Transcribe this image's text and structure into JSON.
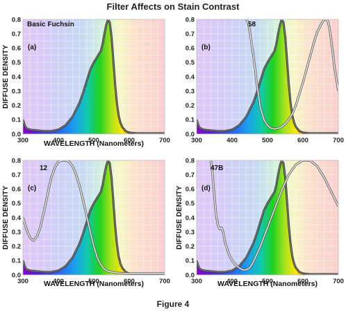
{
  "title": "Filter Affects on Stain Contrast",
  "caption": "Figure 4",
  "chart_data": [
    {
      "type": "line",
      "panel": "(a)",
      "annotation": "Basic Fuchsin",
      "xlabel": "WAVELENGTH (Nanometers)",
      "ylabel": "DIFFUSE DENSITY",
      "xlim": [
        300,
        700
      ],
      "ylim": [
        0,
        0.8
      ],
      "xticks": [
        "300",
        "400",
        "500",
        "600",
        "700"
      ],
      "yticks": [
        "0.0",
        "0.1",
        "0.2",
        "0.3",
        "0.4",
        "0.5",
        "0.6",
        "0.7",
        "0.8"
      ],
      "grid": true,
      "series": [
        {
          "x": [
            300,
            305,
            310,
            320,
            340,
            360,
            380,
            400,
            420,
            440,
            460,
            470,
            480,
            490,
            500,
            510,
            520,
            525,
            530,
            535,
            540,
            545,
            550,
            555,
            560,
            565,
            570,
            575,
            580,
            590,
            600,
            620,
            640,
            660,
            680,
            700
          ],
          "y": [
            0.1,
            0.06,
            0.04,
            0.03,
            0.025,
            0.02,
            0.02,
            0.03,
            0.06,
            0.12,
            0.22,
            0.29,
            0.37,
            0.45,
            0.5,
            0.54,
            0.58,
            0.63,
            0.7,
            0.76,
            0.8,
            0.78,
            0.68,
            0.52,
            0.35,
            0.22,
            0.13,
            0.08,
            0.05,
            0.02,
            0.01,
            0.005,
            0.005,
            0.005,
            0.005,
            0.005
          ]
        }
      ]
    },
    {
      "type": "line",
      "panel": "(b)",
      "annotation": "58",
      "xlabel": "",
      "ylabel": "",
      "xlim": [
        300,
        700
      ],
      "ylim": [
        0,
        0.8
      ],
      "xticks": [
        "300",
        "400",
        "500",
        "600",
        "700"
      ],
      "yticks": [
        "0.0",
        "0.1",
        "0.2",
        "0.3",
        "0.4",
        "0.5",
        "0.6",
        "0.7",
        "0.8"
      ],
      "grid": true,
      "series": [
        {
          "x": [
            300,
            305,
            310,
            320,
            340,
            360,
            380,
            400,
            420,
            440,
            460,
            470,
            480,
            490,
            500,
            510,
            520,
            525,
            530,
            535,
            540,
            545,
            550,
            555,
            560,
            565,
            570,
            575,
            580,
            590,
            600,
            620,
            640,
            660,
            680,
            700
          ],
          "y": [
            0.1,
            0.06,
            0.04,
            0.03,
            0.025,
            0.02,
            0.02,
            0.03,
            0.06,
            0.12,
            0.22,
            0.29,
            0.37,
            0.45,
            0.5,
            0.54,
            0.58,
            0.63,
            0.7,
            0.76,
            0.8,
            0.78,
            0.68,
            0.52,
            0.35,
            0.22,
            0.13,
            0.08,
            0.05,
            0.02,
            0.01,
            0.005,
            0.005,
            0.005,
            0.005,
            0.005
          ]
        },
        {
          "x": [
            440,
            445,
            450,
            460,
            470,
            480,
            490,
            500,
            510,
            520,
            530,
            540,
            550,
            560,
            570,
            580,
            590,
            600,
            610,
            620,
            630,
            640,
            650,
            660,
            665,
            670,
            675,
            680,
            690,
            700
          ],
          "y": [
            0.8,
            0.78,
            0.72,
            0.55,
            0.35,
            0.18,
            0.1,
            0.06,
            0.04,
            0.035,
            0.04,
            0.05,
            0.07,
            0.1,
            0.14,
            0.2,
            0.28,
            0.36,
            0.45,
            0.54,
            0.63,
            0.71,
            0.76,
            0.8,
            0.8,
            0.79,
            0.74,
            0.65,
            0.45,
            0.3
          ]
        }
      ]
    },
    {
      "type": "line",
      "panel": "(c)",
      "annotation": "12",
      "xlabel": "WAVELENGTH (Nanometers)",
      "ylabel": "DIFFUSE DENSITY",
      "xlim": [
        300,
        700
      ],
      "ylim": [
        0,
        0.8
      ],
      "xticks": [
        "300",
        "400",
        "500",
        "600",
        "700"
      ],
      "yticks": [
        "0.0",
        "0.1",
        "0.2",
        "0.3",
        "0.4",
        "0.5",
        "0.6",
        "0.7",
        "0.8"
      ],
      "grid": true,
      "series": [
        {
          "x": [
            300,
            305,
            310,
            320,
            340,
            360,
            380,
            400,
            420,
            440,
            460,
            470,
            480,
            490,
            500,
            510,
            520,
            525,
            530,
            535,
            540,
            545,
            550,
            555,
            560,
            565,
            570,
            575,
            580,
            590,
            600,
            620,
            640,
            660,
            680,
            700
          ],
          "y": [
            0.1,
            0.06,
            0.04,
            0.03,
            0.025,
            0.02,
            0.02,
            0.03,
            0.06,
            0.12,
            0.22,
            0.29,
            0.37,
            0.45,
            0.5,
            0.54,
            0.58,
            0.63,
            0.7,
            0.76,
            0.8,
            0.78,
            0.68,
            0.52,
            0.35,
            0.22,
            0.13,
            0.08,
            0.05,
            0.02,
            0.01,
            0.005,
            0.005,
            0.005,
            0.005,
            0.005
          ]
        },
        {
          "x": [
            300,
            310,
            320,
            330,
            340,
            350,
            360,
            370,
            380,
            390,
            400,
            410,
            420,
            430,
            440,
            450,
            460,
            470,
            480,
            490,
            500,
            510,
            520,
            530,
            540,
            560,
            580,
            600,
            650,
            700
          ],
          "y": [
            0.4,
            0.32,
            0.26,
            0.24,
            0.27,
            0.34,
            0.45,
            0.57,
            0.68,
            0.75,
            0.79,
            0.8,
            0.8,
            0.79,
            0.76,
            0.7,
            0.62,
            0.52,
            0.41,
            0.3,
            0.2,
            0.12,
            0.07,
            0.04,
            0.025,
            0.015,
            0.012,
            0.01,
            0.01,
            0.01
          ]
        }
      ]
    },
    {
      "type": "line",
      "panel": "(d)",
      "annotation": "47B",
      "xlabel": "WAVELENGTH (Nanometers)",
      "ylabel": "DIFFUSE DENSITY",
      "xlim": [
        300,
        700
      ],
      "ylim": [
        0,
        0.8
      ],
      "xticks": [
        "300",
        "400",
        "500",
        "600",
        "700"
      ],
      "yticks": [
        "0.0",
        "0.1",
        "0.2",
        "0.3",
        "0.4",
        "0.5",
        "0.6",
        "0.7",
        "0.8"
      ],
      "grid": true,
      "series": [
        {
          "x": [
            300,
            305,
            310,
            320,
            340,
            360,
            380,
            400,
            420,
            440,
            460,
            470,
            480,
            490,
            500,
            510,
            520,
            525,
            530,
            535,
            540,
            545,
            550,
            555,
            560,
            565,
            570,
            575,
            580,
            590,
            600,
            620,
            640,
            660,
            680,
            700
          ],
          "y": [
            0.1,
            0.06,
            0.04,
            0.03,
            0.025,
            0.02,
            0.02,
            0.03,
            0.06,
            0.12,
            0.22,
            0.29,
            0.37,
            0.45,
            0.5,
            0.54,
            0.58,
            0.63,
            0.7,
            0.76,
            0.8,
            0.78,
            0.68,
            0.52,
            0.35,
            0.22,
            0.13,
            0.08,
            0.05,
            0.02,
            0.01,
            0.005,
            0.005,
            0.005,
            0.005,
            0.005
          ]
        },
        {
          "x": [
            340,
            345,
            350,
            355,
            360,
            365,
            370,
            375,
            380,
            390,
            400,
            410,
            420,
            430,
            440,
            450,
            460,
            480,
            500,
            520,
            540,
            560,
            580,
            600,
            620,
            640,
            660,
            680,
            700
          ],
          "y": [
            0.8,
            0.7,
            0.55,
            0.42,
            0.35,
            0.32,
            0.33,
            0.3,
            0.23,
            0.15,
            0.1,
            0.07,
            0.05,
            0.035,
            0.035,
            0.05,
            0.09,
            0.2,
            0.33,
            0.46,
            0.59,
            0.7,
            0.77,
            0.8,
            0.8,
            0.76,
            0.68,
            0.58,
            0.48
          ]
        }
      ]
    }
  ]
}
